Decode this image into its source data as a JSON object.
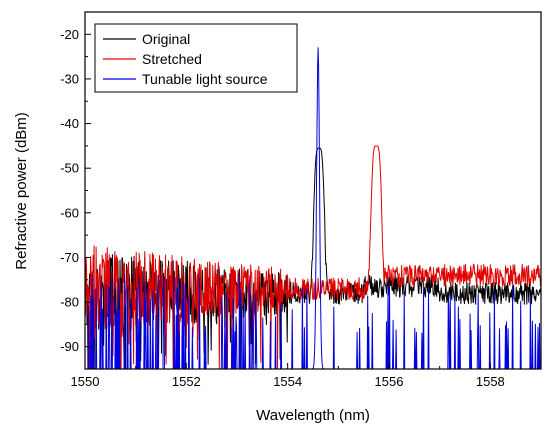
{
  "chart_data": {
    "type": "line",
    "title": "",
    "xlabel": "Wavelength (nm)",
    "ylabel": "Refractive power (dBm)",
    "xlim": [
      1550,
      1559
    ],
    "ylim": [
      -95,
      -15
    ],
    "xticks": [
      1550,
      1552,
      1554,
      1556,
      1558
    ],
    "yticks": [
      -90,
      -80,
      -70,
      -60,
      -50,
      -40,
      -30,
      -20
    ],
    "grid": false,
    "legend": {
      "position": "top-left"
    },
    "series": [
      {
        "name": "Original",
        "color": "#000000",
        "noise_floor": -78,
        "peak": {
          "center": 1554.62,
          "top": -45.5,
          "half_width": 0.12
        }
      },
      {
        "name": "Stretched",
        "color": "#e00000",
        "noise_floor": -77,
        "peak": {
          "center": 1555.75,
          "top": -45.0,
          "half_width": 0.12
        }
      },
      {
        "name": "Tunable light source",
        "color": "#0000e0",
        "noise_floor": -95,
        "peak": {
          "center": 1554.6,
          "top": -23,
          "half_width": 0.04
        }
      }
    ]
  }
}
